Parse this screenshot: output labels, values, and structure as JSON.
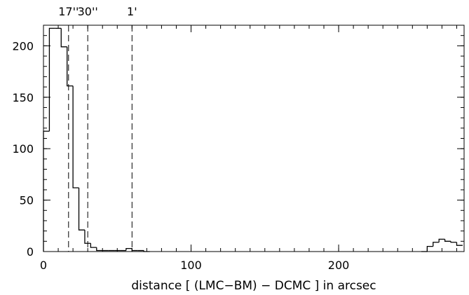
{
  "chart_data": {
    "type": "bar",
    "style": "step-histogram",
    "xlabel": "distance [ (LMC−BM) − DCMC ] in arcsec",
    "ylabel": "",
    "xlim": [
      0,
      285
    ],
    "ylim": [
      0,
      220
    ],
    "bin_width": 4,
    "bins": [
      {
        "x0": 0,
        "x1": 4,
        "count": 117
      },
      {
        "x0": 4,
        "x1": 8,
        "count": 217
      },
      {
        "x0": 8,
        "x1": 12,
        "count": 217
      },
      {
        "x0": 12,
        "x1": 16,
        "count": 199
      },
      {
        "x0": 16,
        "x1": 20,
        "count": 161
      },
      {
        "x0": 20,
        "x1": 24,
        "count": 62
      },
      {
        "x0": 24,
        "x1": 28,
        "count": 21
      },
      {
        "x0": 28,
        "x1": 32,
        "count": 8
      },
      {
        "x0": 32,
        "x1": 36,
        "count": 4
      },
      {
        "x0": 36,
        "x1": 40,
        "count": 1
      },
      {
        "x0": 40,
        "x1": 44,
        "count": 1
      },
      {
        "x0": 44,
        "x1": 48,
        "count": 1
      },
      {
        "x0": 48,
        "x1": 52,
        "count": 1
      },
      {
        "x0": 52,
        "x1": 56,
        "count": 1
      },
      {
        "x0": 56,
        "x1": 60,
        "count": 3
      },
      {
        "x0": 60,
        "x1": 64,
        "count": 1
      },
      {
        "x0": 64,
        "x1": 68,
        "count": 1
      },
      {
        "x0": 68,
        "x1": 72,
        "count": 0
      },
      {
        "x0": 256,
        "x1": 260,
        "count": 0
      },
      {
        "x0": 260,
        "x1": 264,
        "count": 5
      },
      {
        "x0": 264,
        "x1": 268,
        "count": 9
      },
      {
        "x0": 268,
        "x1": 272,
        "count": 12
      },
      {
        "x0": 272,
        "x1": 276,
        "count": 10
      },
      {
        "x0": 276,
        "x1": 280,
        "count": 9
      },
      {
        "x0": 280,
        "x1": 284,
        "count": 6
      }
    ],
    "x_ticks": [
      {
        "value": 0,
        "label": "0"
      },
      {
        "value": 100,
        "label": "100"
      },
      {
        "value": 200,
        "label": "200"
      }
    ],
    "y_ticks": [
      {
        "value": 0,
        "label": "0"
      },
      {
        "value": 50,
        "label": "50"
      },
      {
        "value": 100,
        "label": "100"
      },
      {
        "value": 150,
        "label": "150"
      },
      {
        "value": 200,
        "label": "200"
      }
    ],
    "x_minor_step": 10,
    "y_minor_step": 10,
    "reference_lines": [
      {
        "x": 17,
        "label": "17''"
      },
      {
        "x": 30,
        "label": "30''"
      },
      {
        "x": 60,
        "label": "1'"
      }
    ],
    "grid": false
  }
}
